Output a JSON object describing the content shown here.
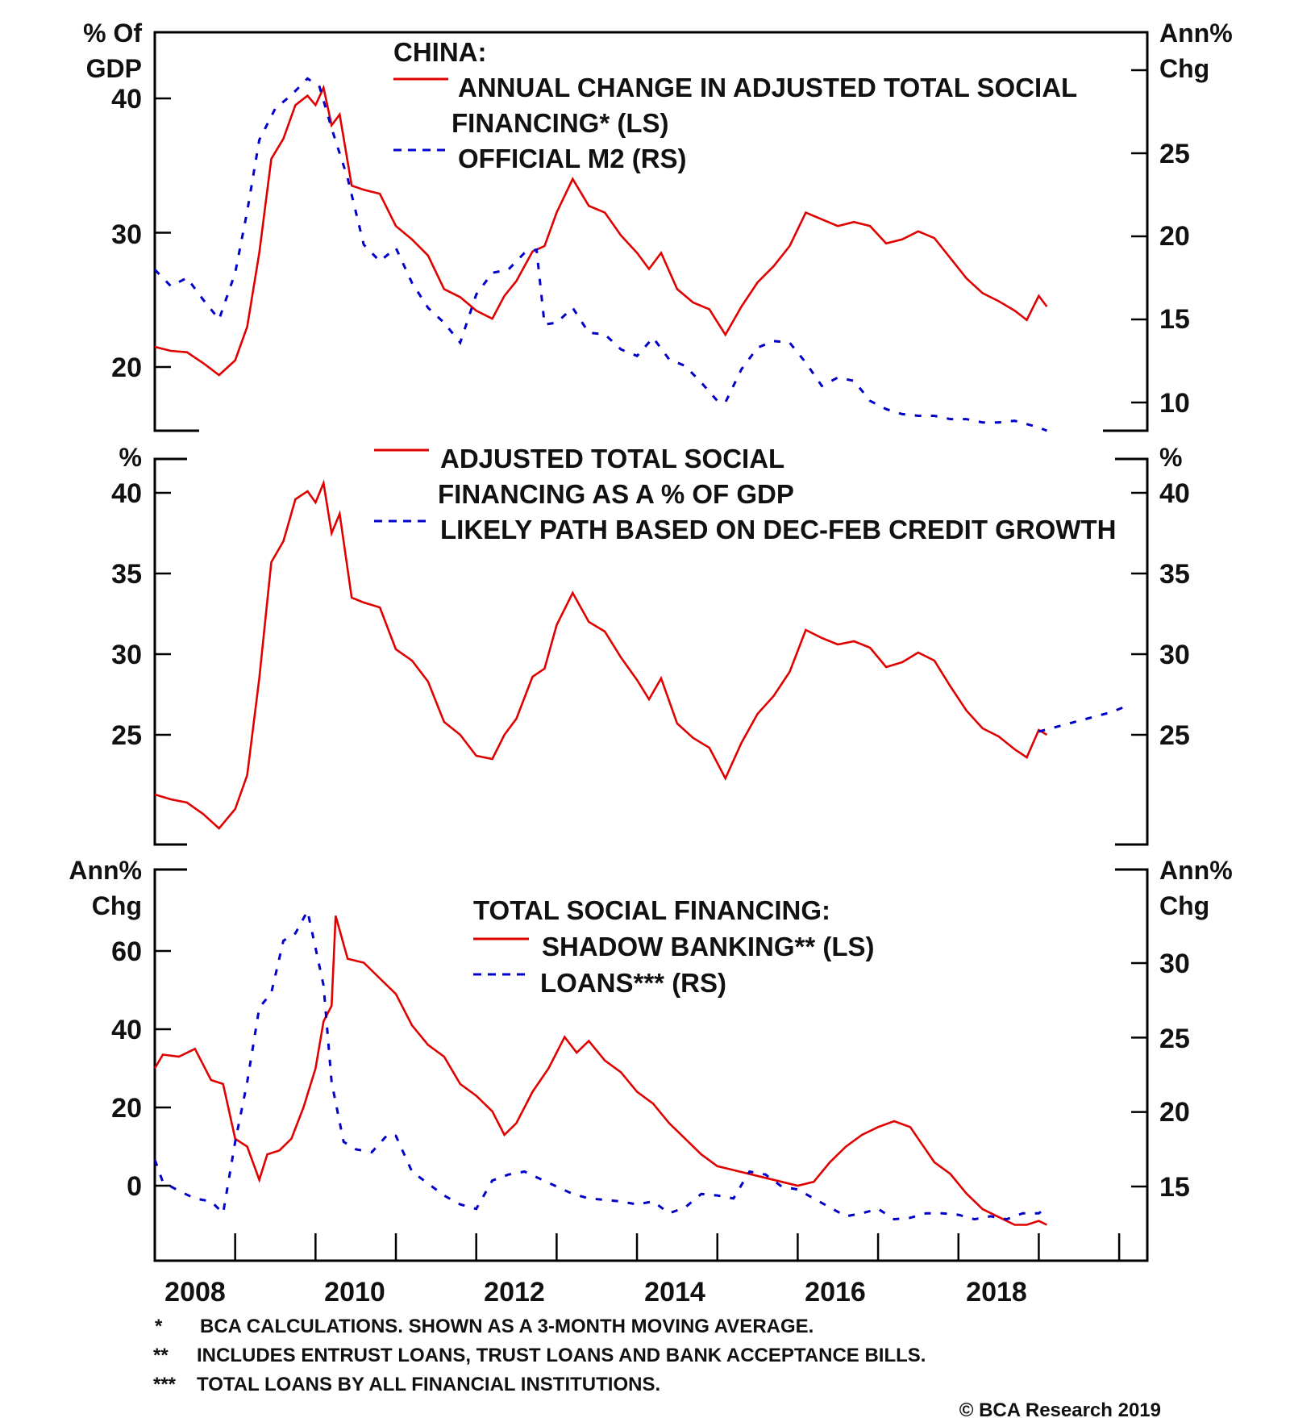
{
  "colors": {
    "red": "#e00000",
    "blue": "#0000c8",
    "axis": "#000000"
  },
  "x_axis": {
    "year_labels": [
      "2008",
      "2010",
      "2012",
      "2014",
      "2016",
      "2018"
    ],
    "range": [
      2008.0,
      2020.35
    ],
    "ticks": [
      2009,
      2010,
      2011,
      2012,
      2013,
      2014,
      2015,
      2016,
      2017,
      2018,
      2019,
      2020
    ]
  },
  "footnotes": [
    {
      "mark": "*",
      "text": "BCA CALCULATIONS. SHOWN AS A 3-MONTH MOVING AVERAGE."
    },
    {
      "mark": "**",
      "text": "INCLUDES ENTRUST LOANS, TRUST LOANS AND BANK ACCEPTANCE BILLS."
    },
    {
      "mark": "***",
      "text": "TOTAL LOANS BY ALL FINANCIAL INSTITUTIONS."
    }
  ],
  "copyright": "© BCA Research 2019",
  "chart_data": [
    {
      "type": "line",
      "title": "CHINA:",
      "left_unit": [
        "% Of",
        "GDP"
      ],
      "right_unit": [
        "Ann%",
        "Chg"
      ],
      "left_ticks": [
        "40",
        "30",
        "20"
      ],
      "right_ticks": [
        "25",
        "20",
        "15",
        "10"
      ],
      "ylim_left": [
        14,
        43
      ],
      "ylim_right": [
        8,
        31
      ],
      "left_tick_values": [
        40,
        30,
        20
      ],
      "right_tick_values": [
        30,
        25,
        20,
        15,
        10
      ],
      "legend": [
        {
          "name": "ANNUAL CHANGE IN ADJUSTED TOTAL SOCIAL",
          "name2": "FINANCING* (LS)",
          "style": "solid",
          "color": "red"
        },
        {
          "name": "OFFICIAL M2 (RS)",
          "style": "dashed",
          "color": "blue"
        }
      ],
      "series": [
        {
          "name": "Annual change in adjusted total social financing (LS)",
          "axis": "left",
          "style": "solid",
          "color": "red",
          "x": [
            2008.0,
            2008.2,
            2008.4,
            2008.6,
            2008.8,
            2009.0,
            2009.15,
            2009.3,
            2009.45,
            2009.6,
            2009.75,
            2009.9,
            2010.0,
            2010.1,
            2010.2,
            2010.3,
            2010.45,
            2010.6,
            2010.8,
            2011.0,
            2011.2,
            2011.4,
            2011.6,
            2011.8,
            2012.0,
            2012.2,
            2012.35,
            2012.5,
            2012.7,
            2012.85,
            2013.0,
            2013.2,
            2013.4,
            2013.6,
            2013.8,
            2014.0,
            2014.15,
            2014.3,
            2014.5,
            2014.7,
            2014.9,
            2015.1,
            2015.3,
            2015.5,
            2015.7,
            2015.9,
            2016.1,
            2016.3,
            2016.5,
            2016.7,
            2016.9,
            2017.1,
            2017.3,
            2017.5,
            2017.7,
            2017.9,
            2018.1,
            2018.3,
            2018.5,
            2018.7,
            2018.85,
            2019.0,
            2019.1
          ],
          "values": [
            21.5,
            21.2,
            21.1,
            20.3,
            19.4,
            20.5,
            23.0,
            28.5,
            35.5,
            37.0,
            39.5,
            40.2,
            39.5,
            40.8,
            38.0,
            38.8,
            33.5,
            33.2,
            32.9,
            30.5,
            29.5,
            28.3,
            25.8,
            25.2,
            24.2,
            23.6,
            25.3,
            26.4,
            28.6,
            29.0,
            31.5,
            34.0,
            32.0,
            31.5,
            29.8,
            28.5,
            27.3,
            28.5,
            25.8,
            24.8,
            24.3,
            22.4,
            24.5,
            26.3,
            27.5,
            29.0,
            31.5,
            31.0,
            30.5,
            30.8,
            30.5,
            29.2,
            29.5,
            30.1,
            29.6,
            28.1,
            26.6,
            25.5,
            24.9,
            24.2,
            23.5,
            25.3,
            24.5
          ]
        },
        {
          "name": "Official M2 (RS)",
          "axis": "right",
          "style": "dashed",
          "color": "blue",
          "x": [
            2008.0,
            2008.2,
            2008.4,
            2008.6,
            2008.8,
            2009.0,
            2009.15,
            2009.3,
            2009.5,
            2009.7,
            2009.9,
            2010.05,
            2010.2,
            2010.4,
            2010.6,
            2010.8,
            2011.0,
            2011.2,
            2011.4,
            2011.6,
            2011.8,
            2012.0,
            2012.2,
            2012.4,
            2012.6,
            2012.75,
            2012.85,
            2013.0,
            2013.2,
            2013.4,
            2013.6,
            2013.8,
            2014.0,
            2014.2,
            2014.4,
            2014.6,
            2014.8,
            2015.0,
            2015.1,
            2015.3,
            2015.5,
            2015.7,
            2015.9,
            2016.1,
            2016.3,
            2016.5,
            2016.7,
            2016.9,
            2017.1,
            2017.3,
            2017.5,
            2017.7,
            2017.9,
            2018.1,
            2018.3,
            2018.5,
            2018.7,
            2018.85,
            2019.0,
            2019.1
          ],
          "values": [
            18.0,
            17.0,
            17.5,
            16.2,
            15.0,
            17.8,
            21.5,
            25.8,
            27.7,
            28.5,
            29.5,
            29.0,
            26.5,
            23.5,
            19.5,
            18.5,
            19.3,
            17.2,
            15.7,
            14.8,
            13.6,
            16.5,
            17.8,
            18.0,
            19.0,
            19.2,
            14.7,
            14.8,
            15.7,
            14.2,
            14.1,
            13.2,
            12.8,
            13.9,
            12.6,
            12.2,
            11.2,
            10.1,
            10.0,
            12.0,
            13.3,
            13.7,
            13.6,
            12.4,
            11.0,
            11.5,
            11.3,
            10.1,
            9.6,
            9.3,
            9.2,
            9.2,
            9.0,
            9.0,
            8.8,
            8.8,
            8.9,
            8.7,
            8.5,
            8.3
          ]
        }
      ]
    },
    {
      "type": "line",
      "left_unit": [
        "%"
      ],
      "right_unit": [
        "%"
      ],
      "left_ticks": [
        "40",
        "35",
        "30",
        "25"
      ],
      "right_ticks": [
        "40",
        "35",
        "30",
        "25"
      ],
      "left_tick_values": [
        40,
        35,
        30,
        25
      ],
      "ylim": [
        18.3,
        41.7
      ],
      "legend": [
        {
          "name": "ADJUSTED TOTAL SOCIAL",
          "name2": "FINANCING AS A % OF GDP",
          "style": "solid",
          "color": "red"
        },
        {
          "name": "LIKELY PATH BASED ON DEC-FEB CREDIT GROWTH",
          "style": "dashed",
          "color": "blue"
        }
      ],
      "series": [
        {
          "name": "Adjusted total social financing as a % of GDP",
          "axis": "left",
          "style": "solid",
          "color": "red",
          "x": [
            2008.0,
            2008.2,
            2008.4,
            2008.6,
            2008.8,
            2009.0,
            2009.15,
            2009.3,
            2009.45,
            2009.6,
            2009.75,
            2009.9,
            2010.0,
            2010.1,
            2010.2,
            2010.3,
            2010.45,
            2010.6,
            2010.8,
            2011.0,
            2011.2,
            2011.4,
            2011.6,
            2011.8,
            2012.0,
            2012.2,
            2012.35,
            2012.5,
            2012.7,
            2012.85,
            2013.0,
            2013.2,
            2013.4,
            2013.6,
            2013.8,
            2014.0,
            2014.15,
            2014.3,
            2014.5,
            2014.7,
            2014.9,
            2015.1,
            2015.3,
            2015.5,
            2015.7,
            2015.9,
            2016.1,
            2016.3,
            2016.5,
            2016.7,
            2016.9,
            2017.1,
            2017.3,
            2017.5,
            2017.7,
            2017.9,
            2018.1,
            2018.3,
            2018.5,
            2018.7,
            2018.85,
            2019.0,
            2019.1
          ],
          "values": [
            21.3,
            21.0,
            20.8,
            20.1,
            19.2,
            20.4,
            22.5,
            28.5,
            35.7,
            37.0,
            39.6,
            40.1,
            39.4,
            40.6,
            37.5,
            38.7,
            33.5,
            33.2,
            32.9,
            30.3,
            29.6,
            28.3,
            25.8,
            25.0,
            23.7,
            23.5,
            25.0,
            26.0,
            28.6,
            29.1,
            31.8,
            33.8,
            32.0,
            31.4,
            29.8,
            28.4,
            27.2,
            28.5,
            25.7,
            24.8,
            24.2,
            22.3,
            24.5,
            26.3,
            27.4,
            28.9,
            31.5,
            31.0,
            30.6,
            30.8,
            30.4,
            29.2,
            29.5,
            30.1,
            29.6,
            28.0,
            26.5,
            25.4,
            24.9,
            24.1,
            23.6,
            25.3,
            25.0
          ]
        },
        {
          "name": "Likely path based on Dec-Feb credit growth",
          "axis": "left",
          "style": "dashed",
          "color": "blue",
          "x": [
            2019.0,
            2019.3,
            2019.6,
            2019.9,
            2020.1
          ],
          "values": [
            25.2,
            25.6,
            26.0,
            26.4,
            26.8
          ]
        }
      ]
    },
    {
      "type": "line",
      "title": "TOTAL SOCIAL FINANCING:",
      "left_unit": [
        "Ann%",
        "Chg"
      ],
      "right_unit": [
        "Ann%",
        "Chg"
      ],
      "left_ticks": [
        "60",
        "40",
        "20",
        "0"
      ],
      "right_ticks": [
        "30",
        "25",
        "20",
        "15"
      ],
      "left_tick_values": [
        60,
        40,
        20,
        0
      ],
      "right_tick_values": [
        30,
        25,
        20,
        15
      ],
      "ylim_left": [
        -20,
        80
      ],
      "ylim_right": [
        10.0,
        34.0
      ],
      "legend": [
        {
          "name": "SHADOW BANKING** (LS)",
          "style": "solid",
          "color": "red"
        },
        {
          "name": "LOANS*** (RS)",
          "style": "dashed",
          "color": "blue"
        }
      ],
      "series": [
        {
          "name": "Shadow banking (LS)",
          "axis": "left",
          "style": "solid",
          "color": "red",
          "x": [
            2008.0,
            2008.1,
            2008.3,
            2008.5,
            2008.7,
            2008.85,
            2009.0,
            2009.15,
            2009.3,
            2009.4,
            2009.55,
            2009.7,
            2009.85,
            2010.0,
            2010.1,
            2010.2,
            2010.25,
            2010.4,
            2010.6,
            2010.8,
            2011.0,
            2011.2,
            2011.4,
            2011.6,
            2011.8,
            2012.0,
            2012.2,
            2012.35,
            2012.5,
            2012.7,
            2012.9,
            2013.1,
            2013.25,
            2013.4,
            2013.6,
            2013.8,
            2014.0,
            2014.2,
            2014.4,
            2014.6,
            2014.8,
            2015.0,
            2015.2,
            2015.4,
            2015.6,
            2015.8,
            2016.0,
            2016.2,
            2016.4,
            2016.6,
            2016.8,
            2017.0,
            2017.2,
            2017.4,
            2017.5,
            2017.7,
            2017.9,
            2018.1,
            2018.3,
            2018.5,
            2018.7,
            2018.85,
            2019.0,
            2019.1
          ],
          "values": [
            30.0,
            33.5,
            33.0,
            35.0,
            27.0,
            26.0,
            12.0,
            10.0,
            1.5,
            8.0,
            9.0,
            12.0,
            20.0,
            30.0,
            42.0,
            46.0,
            69.0,
            58.0,
            57.0,
            53.0,
            49.0,
            41.0,
            36.0,
            33.0,
            26.0,
            23.0,
            19.0,
            13.0,
            16.0,
            24.0,
            30.0,
            38.0,
            34.0,
            37.0,
            32.0,
            29.0,
            24.0,
            21.0,
            16.0,
            12.0,
            8.0,
            5.0,
            4.0,
            3.0,
            2.0,
            1.0,
            0.0,
            1.0,
            6.0,
            10.0,
            13.0,
            15.0,
            16.5,
            15.0,
            12.0,
            6.0,
            3.0,
            -2.0,
            -6.0,
            -8.0,
            -10.0,
            -10.0,
            -9.0,
            -10.0
          ]
        },
        {
          "name": "Loans (RS)",
          "axis": "right",
          "style": "dashed",
          "color": "blue",
          "x": [
            2008.0,
            2008.1,
            2008.3,
            2008.5,
            2008.7,
            2008.85,
            2009.0,
            2009.15,
            2009.3,
            2009.45,
            2009.6,
            2009.75,
            2009.9,
            2010.0,
            2010.1,
            2010.2,
            2010.35,
            2010.5,
            2010.7,
            2010.9,
            2011.0,
            2011.2,
            2011.4,
            2011.6,
            2011.8,
            2012.0,
            2012.2,
            2012.4,
            2012.6,
            2012.8,
            2013.0,
            2013.2,
            2013.4,
            2013.6,
            2013.8,
            2014.0,
            2014.2,
            2014.4,
            2014.6,
            2014.8,
            2015.0,
            2015.2,
            2015.4,
            2015.6,
            2015.8,
            2016.0,
            2016.2,
            2016.4,
            2016.6,
            2016.8,
            2017.0,
            2017.2,
            2017.4,
            2017.6,
            2017.8,
            2018.0,
            2018.2,
            2018.4,
            2018.6,
            2018.8,
            2019.0,
            2019.1
          ],
          "values": [
            16.8,
            15.3,
            14.7,
            14.2,
            14.0,
            13.2,
            18.0,
            22.0,
            27.0,
            28.0,
            31.5,
            32.0,
            33.5,
            31.0,
            28.5,
            22.0,
            18.0,
            17.5,
            17.3,
            18.5,
            18.4,
            16.0,
            15.2,
            14.4,
            13.8,
            13.5,
            15.4,
            15.8,
            16.0,
            15.5,
            15.0,
            14.5,
            14.2,
            14.1,
            14.0,
            13.8,
            14.0,
            13.2,
            13.6,
            14.5,
            14.4,
            14.2,
            16.0,
            15.8,
            15.0,
            14.8,
            14.2,
            13.6,
            13.0,
            13.2,
            13.5,
            12.8,
            12.9,
            13.2,
            13.2,
            13.1,
            12.8,
            13.0,
            12.8,
            13.2,
            13.2,
            13.6
          ]
        }
      ]
    }
  ]
}
